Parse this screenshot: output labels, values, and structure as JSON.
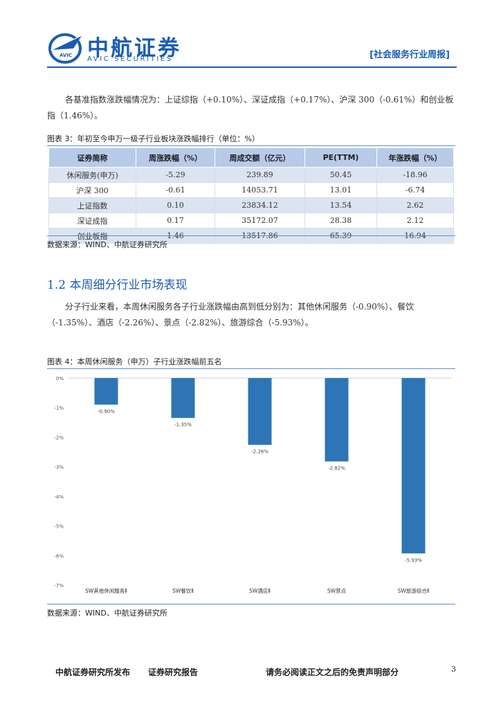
{
  "header": {
    "logo_cn": "中航证券",
    "logo_en": "AVIC SECURITIES",
    "logo_mark_text": "AVIC",
    "report_tag": "[社会服务行业周报]",
    "brand_color": "#1a5db0"
  },
  "intro": {
    "paragraph": "各基准指数涨跌幅情况为：上证综指（+0.10%）、深证成指（+0.17%）、沪深 300（-0.61%）和创业板指（1.46%）。"
  },
  "table": {
    "title": "图表 3：年初至今申万一级子行业板块涨跌幅排行（单位：%）",
    "headers": [
      "证券简称",
      "周涨跌幅（%）",
      "周成交额（亿元）",
      "PE(TTM)",
      "年涨跌幅（%）"
    ],
    "rows": [
      [
        "休闲服务(申万)",
        "-5.29",
        "239.89",
        "50.45",
        "-18.96"
      ],
      [
        "沪深 300",
        "-0.61",
        "14053.71",
        "13.01",
        "-6.74"
      ],
      [
        "上证指数",
        "0.10",
        "23834.12",
        "13.54",
        "2.62"
      ],
      [
        "深证成指",
        "0.17",
        "35172.07",
        "28.38",
        "2.12"
      ],
      [
        "创业板指",
        "1.46",
        "13517.86",
        "65.39",
        "16.94"
      ]
    ],
    "source": "数据来源：WIND、中航证券研究所"
  },
  "section": {
    "heading": "1.2 本周细分行业市场表现",
    "paragraph": "分子行业来看，本周休闲服务各子行业涨跌幅由高到低分别为：其他休闲服务（-0.90%）、餐饮（-1.35%）、酒店（-2.26%）、景点（-2.82%）、旅游综合（-5.93%）。"
  },
  "chart_data": {
    "type": "bar",
    "title": "图表 4：本周休闲服务（申万）子行业涨跌幅前五名",
    "categories": [
      "SW其他休闲服务Ⅱ",
      "SW餐饮Ⅱ",
      "SW酒店Ⅱ",
      "SW景点",
      "SW旅游综合Ⅱ"
    ],
    "values": [
      -0.9,
      -1.35,
      -2.26,
      -2.82,
      -5.93
    ],
    "value_labels": [
      "-0.90%",
      "-1.35%",
      "-2.26%",
      "-2.82%",
      "-5.93%"
    ],
    "yticks": [
      "0%",
      "-1%",
      "-2%",
      "-3%",
      "-4%",
      "-5%",
      "-6%",
      "-7%"
    ],
    "ylim": [
      -7,
      0
    ],
    "grid": false,
    "bar_color": "#2e75b6",
    "source": "数据来源：WIND、中航证券研究所"
  },
  "footer": {
    "publisher": "中航证券研究所发布",
    "report_type": "证券研究报告",
    "disclaimer": "请务必阅读正文之后的免责声明部分",
    "page_number": "3"
  }
}
